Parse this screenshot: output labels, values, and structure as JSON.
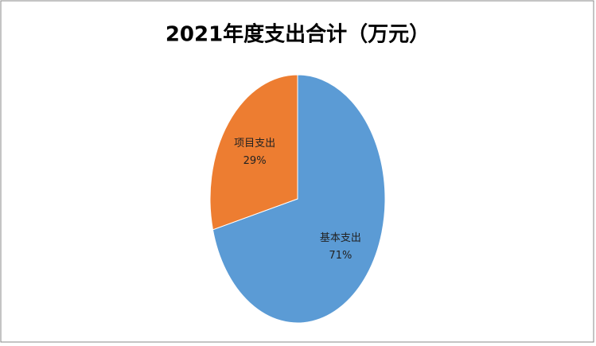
{
  "chart_data": {
    "type": "pie",
    "title": "2021年度支出合计（万元）",
    "categories": [
      "基本支出",
      "项目支出"
    ],
    "values": [
      71,
      29
    ],
    "value_labels": [
      "71%",
      "29%"
    ],
    "colors": [
      "#5b9bd5",
      "#ed7d31"
    ]
  }
}
